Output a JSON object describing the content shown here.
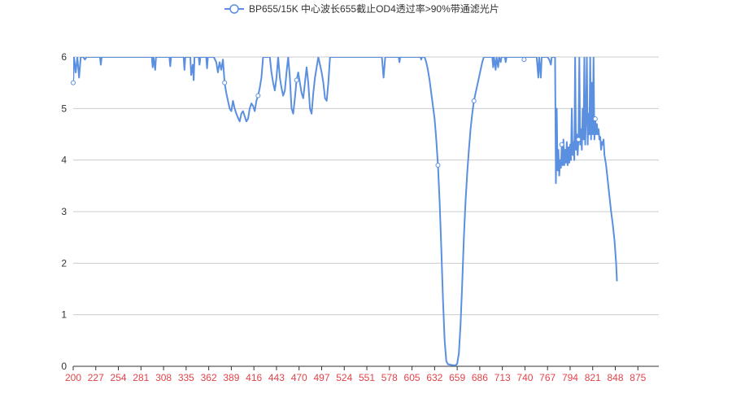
{
  "chart_data": {
    "type": "line",
    "title": "",
    "xlabel": "",
    "ylabel": "",
    "legend": {
      "position": "top-center",
      "entries": [
        "BP655/15K 中心波长655截止OD4透过率>90%带通滤光片"
      ]
    },
    "grid": {
      "y": true,
      "x": false
    },
    "colors": {
      "line": "#5b8fe0",
      "grid": "#cccccc",
      "xtick": "#e0444a",
      "ytick": "#333333",
      "axis": "#333333"
    },
    "xlim": [
      200,
      900
    ],
    "ylim": [
      0,
      6
    ],
    "x_ticks": [
      "200",
      "227",
      "254",
      "281",
      "308",
      "335",
      "362",
      "389",
      "416",
      "443",
      "470",
      "497",
      "524",
      "551",
      "578",
      "605",
      "632",
      "659",
      "686",
      "713",
      "740",
      "767",
      "794",
      "821",
      "848",
      "875"
    ],
    "y_ticks": [
      "0",
      "1",
      "2",
      "3",
      "4",
      "5",
      "6"
    ],
    "series": [
      {
        "name": "BP655/15K 中心波长655截止OD4透过率>90%带通滤光片",
        "points": [
          [
            200,
            5.5
          ],
          [
            201,
            6
          ],
          [
            203,
            5.7
          ],
          [
            205,
            6
          ],
          [
            207,
            5.6
          ],
          [
            209,
            6
          ],
          [
            212,
            6
          ],
          [
            214,
            5.95
          ],
          [
            216,
            6
          ],
          [
            232,
            6
          ],
          [
            233,
            5.85
          ],
          [
            234,
            6
          ],
          [
            294,
            6
          ],
          [
            295,
            5.8
          ],
          [
            296,
            6
          ],
          [
            298,
            5.75
          ],
          [
            299,
            6
          ],
          [
            315,
            6
          ],
          [
            316,
            5.82
          ],
          [
            317,
            6
          ],
          [
            332,
            6
          ],
          [
            333,
            5.75
          ],
          [
            334,
            6
          ],
          [
            340,
            6
          ],
          [
            341,
            5.65
          ],
          [
            343,
            5.85
          ],
          [
            344,
            5.55
          ],
          [
            345,
            6
          ],
          [
            350,
            6
          ],
          [
            351,
            5.85
          ],
          [
            352,
            6
          ],
          [
            359,
            6
          ],
          [
            360,
            5.78
          ],
          [
            361,
            6
          ],
          [
            368,
            6
          ],
          [
            371,
            5.9
          ],
          [
            373,
            5.7
          ],
          [
            375,
            5.9
          ],
          [
            377,
            5.75
          ],
          [
            379,
            5.95
          ],
          [
            381,
            5.5
          ],
          [
            383,
            5.3
          ],
          [
            385,
            5.15
          ],
          [
            387,
            5.0
          ],
          [
            389,
            4.95
          ],
          [
            391,
            5.15
          ],
          [
            393,
            5.0
          ],
          [
            395,
            4.9
          ],
          [
            397,
            4.82
          ],
          [
            399,
            4.75
          ],
          [
            401,
            4.9
          ],
          [
            403,
            4.95
          ],
          [
            405,
            4.85
          ],
          [
            407,
            4.75
          ],
          [
            409,
            4.8
          ],
          [
            411,
            5.0
          ],
          [
            413,
            5.1
          ],
          [
            415,
            5.05
          ],
          [
            417,
            4.95
          ],
          [
            419,
            5.15
          ],
          [
            421,
            5.25
          ],
          [
            423,
            5.4
          ],
          [
            425,
            5.6
          ],
          [
            427,
            6
          ],
          [
            435,
            6
          ],
          [
            437,
            5.7
          ],
          [
            439,
            5.5
          ],
          [
            441,
            5.35
          ],
          [
            443,
            5.6
          ],
          [
            445,
            6
          ],
          [
            447,
            5.6
          ],
          [
            449,
            5.4
          ],
          [
            451,
            5.25
          ],
          [
            453,
            5.35
          ],
          [
            455,
            5.7
          ],
          [
            457,
            6
          ],
          [
            459,
            5.6
          ],
          [
            461,
            5.0
          ],
          [
            463,
            4.9
          ],
          [
            465,
            5.2
          ],
          [
            467,
            5.55
          ],
          [
            469,
            5.7
          ],
          [
            471,
            5.5
          ],
          [
            473,
            5.3
          ],
          [
            475,
            5.2
          ],
          [
            477,
            5.5
          ],
          [
            479,
            5.8
          ],
          [
            481,
            5.5
          ],
          [
            483,
            5.0
          ],
          [
            485,
            4.9
          ],
          [
            487,
            5.3
          ],
          [
            489,
            5.6
          ],
          [
            491,
            5.8
          ],
          [
            493,
            6
          ],
          [
            495,
            5.85
          ],
          [
            497,
            5.7
          ],
          [
            499,
            5.5
          ],
          [
            501,
            5.2
          ],
          [
            503,
            5.15
          ],
          [
            505,
            5.5
          ],
          [
            507,
            6
          ],
          [
            569,
            6
          ],
          [
            570,
            5.8
          ],
          [
            571,
            5.6
          ],
          [
            572,
            5.8
          ],
          [
            573,
            6
          ],
          [
            589,
            6
          ],
          [
            590,
            5.9
          ],
          [
            591,
            6
          ],
          [
            615,
            6
          ],
          [
            616,
            5.95
          ],
          [
            617,
            6
          ],
          [
            620,
            6
          ],
          [
            622,
            5.9
          ],
          [
            624,
            5.75
          ],
          [
            626,
            5.55
          ],
          [
            628,
            5.3
          ],
          [
            630,
            5.05
          ],
          [
            632,
            4.8
          ],
          [
            634,
            4.4
          ],
          [
            636,
            3.9
          ],
          [
            638,
            3.2
          ],
          [
            640,
            2.3
          ],
          [
            642,
            1.3
          ],
          [
            644,
            0.5
          ],
          [
            646,
            0.1
          ],
          [
            648,
            0.04
          ],
          [
            651,
            0.03
          ],
          [
            654,
            0.02
          ],
          [
            657,
            0.02
          ],
          [
            659,
            0.05
          ],
          [
            661,
            0.25
          ],
          [
            663,
            0.8
          ],
          [
            665,
            1.6
          ],
          [
            667,
            2.5
          ],
          [
            669,
            3.2
          ],
          [
            671,
            3.75
          ],
          [
            673,
            4.2
          ],
          [
            675,
            4.6
          ],
          [
            677,
            4.9
          ],
          [
            679,
            5.15
          ],
          [
            681,
            5.3
          ],
          [
            683,
            5.45
          ],
          [
            685,
            5.6
          ],
          [
            687,
            5.75
          ],
          [
            689,
            5.9
          ],
          [
            691,
            6
          ],
          [
            701,
            6
          ],
          [
            702,
            5.8
          ],
          [
            703,
            6
          ],
          [
            705,
            5.75
          ],
          [
            706,
            6
          ],
          [
            708,
            5.8
          ],
          [
            709,
            6
          ],
          [
            711,
            5.9
          ],
          [
            712,
            6
          ],
          [
            716,
            6
          ],
          [
            717,
            5.9
          ],
          [
            718,
            6
          ],
          [
            738,
            6
          ],
          [
            739,
            5.95
          ],
          [
            740,
            6
          ],
          [
            754,
            6
          ],
          [
            755,
            5.8
          ],
          [
            756,
            5.6
          ],
          [
            757,
            6
          ],
          [
            759,
            5.6
          ],
          [
            760,
            6
          ],
          [
            767,
            6
          ],
          [
            769,
            5.95
          ],
          [
            771,
            5.85
          ],
          [
            772,
            6
          ],
          [
            776,
            6
          ],
          [
            777,
            3.55
          ],
          [
            778,
            5.0
          ],
          [
            779,
            3.8
          ],
          [
            780,
            4.2
          ],
          [
            781,
            3.7
          ],
          [
            782,
            4.0
          ],
          [
            783,
            3.85
          ],
          [
            784,
            4.3
          ],
          [
            785,
            3.9
          ],
          [
            786,
            4.4
          ],
          [
            787,
            3.9
          ],
          [
            788,
            4.2
          ],
          [
            789,
            3.95
          ],
          [
            790,
            4.35
          ],
          [
            791,
            3.9
          ],
          [
            792,
            4.25
          ],
          [
            793,
            3.95
          ],
          [
            794,
            4.3
          ],
          [
            795,
            4.0
          ],
          [
            796,
            5.0
          ],
          [
            797,
            4.1
          ],
          [
            798,
            4.35
          ],
          [
            799,
            4.0
          ],
          [
            800,
            6
          ],
          [
            801,
            4.2
          ],
          [
            802,
            4.5
          ],
          [
            803,
            4.1
          ],
          [
            804,
            4.4
          ],
          [
            805,
            6
          ],
          [
            806,
            4.3
          ],
          [
            807,
            4.6
          ],
          [
            808,
            4.2
          ],
          [
            809,
            5.0
          ],
          [
            810,
            4.4
          ],
          [
            811,
            6
          ],
          [
            812,
            4.3
          ],
          [
            813,
            4.8
          ],
          [
            814,
            6
          ],
          [
            815,
            4.3
          ],
          [
            816,
            4.9
          ],
          [
            817,
            4.5
          ],
          [
            818,
            6
          ],
          [
            819,
            4.4
          ],
          [
            820,
            5.5
          ],
          [
            821,
            4.5
          ],
          [
            822,
            6
          ],
          [
            823,
            4.4
          ],
          [
            824,
            4.8
          ],
          [
            825,
            4.5
          ],
          [
            826,
            4.7
          ],
          [
            827,
            4.5
          ],
          [
            828,
            4.6
          ],
          [
            829,
            4.4
          ],
          [
            830,
            4.45
          ],
          [
            831,
            4.2
          ],
          [
            832,
            4.35
          ],
          [
            833,
            4.3
          ],
          [
            834,
            4.4
          ],
          [
            835,
            4.1
          ],
          [
            837,
            3.9
          ],
          [
            839,
            3.6
          ],
          [
            841,
            3.3
          ],
          [
            843,
            3.0
          ],
          [
            845,
            2.75
          ],
          [
            847,
            2.45
          ],
          [
            849,
            2.0
          ],
          [
            850,
            1.65
          ]
        ]
      }
    ]
  }
}
